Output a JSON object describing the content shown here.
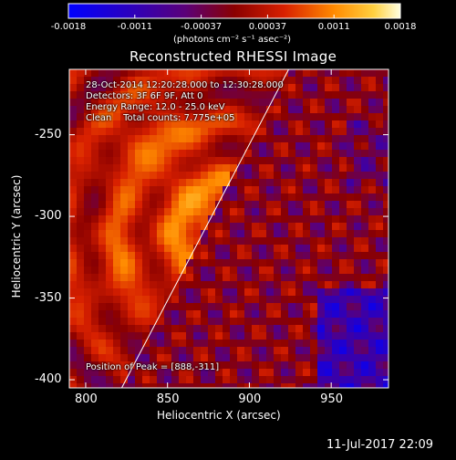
{
  "chart_data": {
    "type": "heatmap",
    "title": "Reconstructed RHESSI Image",
    "xlabel": "Heliocentric X (arcsec)",
    "ylabel": "Heliocentric Y (arcsec)",
    "xlim": [
      790,
      985
    ],
    "ylim": [
      -405,
      -210
    ],
    "xticks": [
      800,
      850,
      900,
      950
    ],
    "yticks": [
      -250,
      -300,
      -350,
      -400
    ],
    "colorbar": {
      "min": -0.0018,
      "max": 0.0018,
      "ticks": [
        "-0.0018",
        "-0.0011",
        "-0.00037",
        "0.00037",
        "0.0011",
        "0.0018"
      ],
      "unit_label": "(photons cm⁻² s⁻¹ asec⁻²)"
    },
    "peak": {
      "x": 888,
      "y": -311
    },
    "limb_line": {
      "from": [
        822,
        -405
      ],
      "to": [
        924,
        -210
      ]
    },
    "annotations": {
      "time": "28-Oct-2014 12:20:28.000 to 12:30:28.000",
      "detectors": "Detectors: 3F 6F 9F, Att 0",
      "energy": "Energy Range: 12.0 - 25.0 keV",
      "clean": "Clean    Total counts: 7.775e+05",
      "peak": "Position of Peak = [888,-311]"
    }
  },
  "footer": {
    "timestamp": "11-Jul-2017 22:09"
  }
}
